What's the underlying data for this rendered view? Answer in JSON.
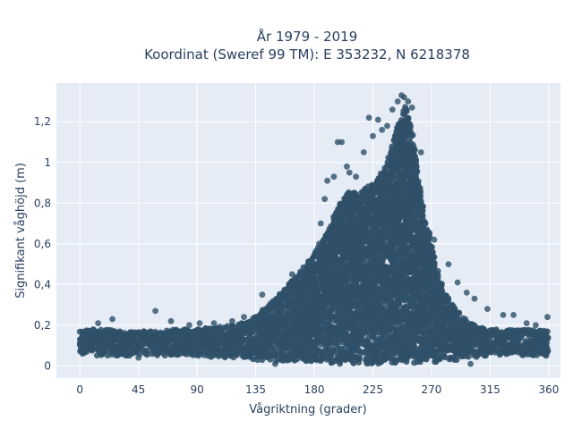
{
  "chart_data": {
    "type": "scatter",
    "title_line1": "År 1979 - 2019",
    "title_line2": "Koordinat (Sweref 99 TM): E 353232, N 6218378",
    "xlabel": "Vågriktning (grader)",
    "ylabel": "Signifikant våghöjd (m)",
    "xlim": [
      -18,
      369
    ],
    "ylim": [
      -0.06,
      1.39
    ],
    "x_ticks": [
      0,
      45,
      90,
      135,
      180,
      225,
      270,
      315,
      360
    ],
    "x_tick_labels": [
      "0",
      "45",
      "90",
      "135",
      "180",
      "225",
      "270",
      "315",
      "360"
    ],
    "y_ticks": [
      0,
      0.2,
      0.4,
      0.6,
      0.8,
      1.0,
      1.2
    ],
    "y_tick_labels": [
      "0",
      "0,2",
      "0,4",
      "0,6",
      "0,8",
      "1",
      "1,2"
    ],
    "grid": true,
    "marker_color": "#2f5068",
    "background_color": "#e5ecf6",
    "envelope_x": [
      0,
      10,
      20,
      30,
      45,
      60,
      75,
      90,
      105,
      120,
      135,
      150,
      160,
      170,
      180,
      190,
      195,
      200,
      205,
      210,
      215,
      220,
      225,
      230,
      235,
      240,
      245,
      250,
      255,
      260,
      265,
      270,
      275,
      280,
      290,
      300,
      315,
      330,
      345,
      360
    ],
    "envelope_ymax": [
      0.17,
      0.18,
      0.18,
      0.17,
      0.17,
      0.17,
      0.18,
      0.18,
      0.19,
      0.2,
      0.24,
      0.33,
      0.4,
      0.47,
      0.56,
      0.66,
      0.73,
      0.8,
      0.85,
      0.86,
      0.86,
      0.88,
      0.9,
      0.94,
      1.0,
      1.08,
      1.2,
      1.28,
      1.15,
      0.92,
      0.74,
      0.6,
      0.45,
      0.36,
      0.27,
      0.21,
      0.18,
      0.18,
      0.18,
      0.17
    ],
    "envelope_ymin": [
      0.05,
      0.05,
      0.05,
      0.05,
      0.05,
      0.05,
      0.05,
      0.05,
      0.04,
      0.04,
      0.03,
      0.02,
      0.02,
      0.02,
      0.01,
      0.01,
      0.01,
      0.01,
      0.01,
      0.01,
      0.01,
      0.01,
      0.01,
      0.01,
      0.01,
      0.01,
      0.01,
      0.01,
      0.01,
      0.01,
      0.01,
      0.01,
      0.02,
      0.02,
      0.03,
      0.04,
      0.05,
      0.05,
      0.05,
      0.05
    ],
    "outliers": [
      {
        "x": 2,
        "y": 0.06
      },
      {
        "x": 14,
        "y": 0.21
      },
      {
        "x": 25,
        "y": 0.23
      },
      {
        "x": 38,
        "y": 0.05
      },
      {
        "x": 58,
        "y": 0.27
      },
      {
        "x": 70,
        "y": 0.22
      },
      {
        "x": 84,
        "y": 0.2
      },
      {
        "x": 92,
        "y": 0.21
      },
      {
        "x": 103,
        "y": 0.21
      },
      {
        "x": 117,
        "y": 0.22
      },
      {
        "x": 126,
        "y": 0.24
      },
      {
        "x": 140,
        "y": 0.35
      },
      {
        "x": 163,
        "y": 0.45
      },
      {
        "x": 185,
        "y": 0.7
      },
      {
        "x": 188,
        "y": 0.82
      },
      {
        "x": 190,
        "y": 0.91
      },
      {
        "x": 195,
        "y": 0.93
      },
      {
        "x": 198,
        "y": 1.1
      },
      {
        "x": 201,
        "y": 1.1
      },
      {
        "x": 205,
        "y": 0.98
      },
      {
        "x": 207,
        "y": 0.95
      },
      {
        "x": 212,
        "y": 0.93
      },
      {
        "x": 218,
        "y": 1.05
      },
      {
        "x": 222,
        "y": 1.22
      },
      {
        "x": 225,
        "y": 1.13
      },
      {
        "x": 229,
        "y": 1.21
      },
      {
        "x": 232,
        "y": 1.16
      },
      {
        "x": 236,
        "y": 1.18
      },
      {
        "x": 240,
        "y": 1.26
      },
      {
        "x": 244,
        "y": 1.3
      },
      {
        "x": 247,
        "y": 1.33
      },
      {
        "x": 249,
        "y": 1.32
      },
      {
        "x": 252,
        "y": 1.3
      },
      {
        "x": 255,
        "y": 1.27
      },
      {
        "x": 262,
        "y": 1.05
      },
      {
        "x": 272,
        "y": 0.62
      },
      {
        "x": 283,
        "y": 0.5
      },
      {
        "x": 290,
        "y": 0.41
      },
      {
        "x": 297,
        "y": 0.36
      },
      {
        "x": 303,
        "y": 0.33
      },
      {
        "x": 313,
        "y": 0.28
      },
      {
        "x": 325,
        "y": 0.25
      },
      {
        "x": 333,
        "y": 0.25
      },
      {
        "x": 343,
        "y": 0.21
      },
      {
        "x": 350,
        "y": 0.2
      },
      {
        "x": 359,
        "y": 0.24
      },
      {
        "x": 358,
        "y": 0.05
      },
      {
        "x": 300,
        "y": 0.01
      },
      {
        "x": 150,
        "y": 0.01
      },
      {
        "x": 45,
        "y": 0.04
      }
    ]
  }
}
